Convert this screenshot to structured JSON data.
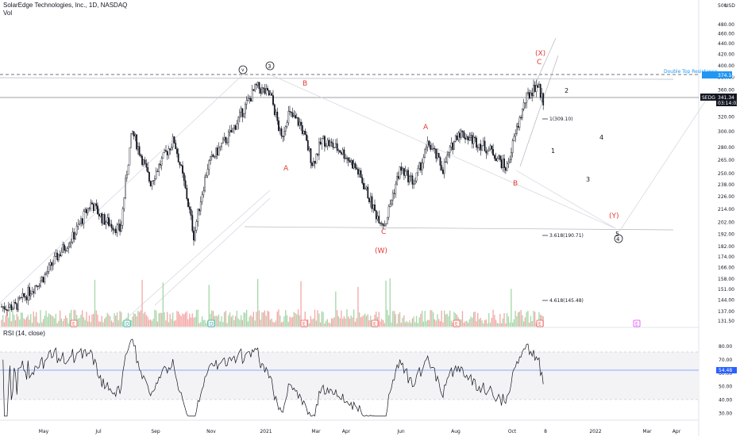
{
  "header": {
    "title": "SolarEdge Technologies, Inc., 1D, NASDAQ",
    "vol_label": "Vol",
    "rsi_label": "RSI (14, close)",
    "currency": "USD"
  },
  "price_axis": {
    "ticks": [
      "480.00",
      "460.00",
      "440.00",
      "420.00",
      "400.00",
      "380.00",
      "360.00",
      "340.00",
      "320.00",
      "300.00",
      "280.00",
      "265.00",
      "250.00",
      "238.00",
      "226.00",
      "214.00",
      "202.00",
      "192.00",
      "182.00",
      "174.00",
      "166.00",
      "158.00",
      "151.00",
      "144.00",
      "137.00",
      "131.50"
    ],
    "top_label": "500",
    "current_label": "341.34",
    "countdown": "03:14:03",
    "symbol_badge": "SEDG",
    "resistance_label": "374.14"
  },
  "rsi_axis": {
    "ticks": [
      "80.00",
      "70.00",
      "60.00",
      "50.00",
      "40.00",
      "30.00"
    ],
    "current_label": "54.48"
  },
  "time_axis": [
    "May",
    "Jul",
    "Sep",
    "Nov",
    "2021",
    "Mar",
    "Apr",
    "Jun",
    "Aug",
    "Oct",
    "8",
    "2022",
    "Mar",
    "Apr"
  ],
  "annotations": {
    "double_top": "Double Top Resistance",
    "fib_1": "1(309.10)",
    "fib_2": "3.618(190.71)",
    "fib_3": "4.618(145.48)",
    "circle_v": "v",
    "circle_3": "3",
    "circle_4": "4",
    "labels": {
      "A1": "A",
      "B1": "B",
      "C1": "C",
      "W": "(W)",
      "A2": "A",
      "B2": "B",
      "C2": "C",
      "X": "(X)",
      "Y": "(Y)",
      "n1": "1",
      "n2": "2",
      "n3": "3",
      "n4": "4",
      "n5": "5"
    },
    "event_markers": [
      "E",
      "D",
      "D",
      "E",
      "E",
      "E",
      "E",
      "E",
      "E"
    ]
  },
  "colors": {
    "up": "#26a69a",
    "down": "#ef5350",
    "wave_red": "#e53935",
    "rsi_line": "#131722",
    "rsi_band": "#f0f0f2",
    "current_line": "#2962ff",
    "resistance": "#2196f3"
  },
  "chart_data": [
    {
      "type": "candlestick",
      "title": "SolarEdge Technologies, Inc., 1D, NASDAQ",
      "series": [
        {
          "name": "SEDG",
          "close_approx": [
            [
              "2020-05-01",
              140
            ],
            [
              "2020-06-01",
              160
            ],
            [
              "2020-06-15",
              175
            ],
            [
              "2020-07-01",
              190
            ],
            [
              "2020-07-20",
              220
            ],
            [
              "2020-08-01",
              205
            ],
            [
              "2020-08-20",
              195
            ],
            [
              "2020-09-01",
              300
            ],
            [
              "2020-09-20",
              240
            ],
            [
              "2020-10-15",
              290
            ],
            [
              "2020-11-05",
              190
            ],
            [
              "2020-11-20",
              260
            ],
            [
              "2020-12-15",
              300
            ],
            [
              "2021-01-10",
              365
            ],
            [
              "2021-01-25",
              350
            ],
            [
              "2021-02-05",
              290
            ],
            [
              "2021-02-12",
              325
            ],
            [
              "2021-02-25",
              310
            ],
            [
              "2021-03-10",
              260
            ],
            [
              "2021-03-20",
              290
            ],
            [
              "2021-04-10",
              275
            ],
            [
              "2021-04-25",
              255
            ],
            [
              "2021-05-15",
              210
            ],
            [
              "2021-05-25",
              200
            ],
            [
              "2021-06-10",
              255
            ],
            [
              "2021-06-25",
              240
            ],
            [
              "2021-07-10",
              285
            ],
            [
              "2021-07-25",
              255
            ],
            [
              "2021-08-10",
              300
            ],
            [
              "2021-08-25",
              290
            ],
            [
              "2021-09-15",
              275
            ],
            [
              "2021-09-30",
              255
            ],
            [
              "2021-10-20",
              345
            ],
            [
              "2021-11-01",
              370
            ],
            [
              "2021-11-08",
              341.34
            ]
          ]
        }
      ],
      "ylim": [
        131.5,
        500
      ],
      "log_scale": true,
      "current_price": 341.34,
      "resistance": 374.14
    },
    {
      "type": "line",
      "title": "RSI (14, close)",
      "current_value": 54.48,
      "ylim": [
        20,
        90
      ],
      "band": [
        30,
        70
      ]
    }
  ]
}
